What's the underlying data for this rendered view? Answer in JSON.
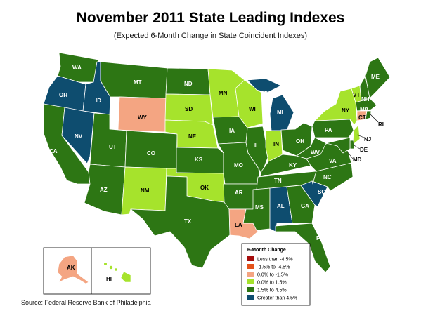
{
  "title": "November 2011 State Leading Indexes",
  "subtitle": "(Expected 6-Month Change in State Coincident Indexes)",
  "source": "Source: Federal Reserve Bank of Philadelphia",
  "legend": {
    "title": "6-Month Change",
    "classes": [
      {
        "label": "Less than -4.5%",
        "color": "#a50d0d"
      },
      {
        "label": "-1.5% to -4.5%",
        "color": "#e4521a"
      },
      {
        "label": "0.0% to -1.5%",
        "color": "#f4a582"
      },
      {
        "label": "0.0% to  1.5%",
        "color": "#a6e32c"
      },
      {
        "label": "1.5% to  4.5%",
        "color": "#2d7614"
      },
      {
        "label": "Greater than 4.5%",
        "color": "#0e4d6f"
      }
    ]
  },
  "states": [
    {
      "abbr": "WA",
      "class": 4
    },
    {
      "abbr": "OR",
      "class": 5
    },
    {
      "abbr": "CA",
      "class": 4
    },
    {
      "abbr": "ID",
      "class": 5
    },
    {
      "abbr": "NV",
      "class": 5
    },
    {
      "abbr": "MT",
      "class": 4
    },
    {
      "abbr": "WY",
      "class": 2
    },
    {
      "abbr": "UT",
      "class": 4
    },
    {
      "abbr": "CO",
      "class": 4
    },
    {
      "abbr": "AZ",
      "class": 4
    },
    {
      "abbr": "NM",
      "class": 3
    },
    {
      "abbr": "ND",
      "class": 4
    },
    {
      "abbr": "SD",
      "class": 3
    },
    {
      "abbr": "NE",
      "class": 3
    },
    {
      "abbr": "KS",
      "class": 4
    },
    {
      "abbr": "OK",
      "class": 3
    },
    {
      "abbr": "TX",
      "class": 4
    },
    {
      "abbr": "MN",
      "class": 3
    },
    {
      "abbr": "IA",
      "class": 4
    },
    {
      "abbr": "MO",
      "class": 4
    },
    {
      "abbr": "AR",
      "class": 4
    },
    {
      "abbr": "LA",
      "class": 2
    },
    {
      "abbr": "WI",
      "class": 3
    },
    {
      "abbr": "IL",
      "class": 4
    },
    {
      "abbr": "MI",
      "class": 5
    },
    {
      "abbr": "IN",
      "class": 3
    },
    {
      "abbr": "OH",
      "class": 4
    },
    {
      "abbr": "KY",
      "class": 4
    },
    {
      "abbr": "TN",
      "class": 4
    },
    {
      "abbr": "MS",
      "class": 4
    },
    {
      "abbr": "AL",
      "class": 5
    },
    {
      "abbr": "GA",
      "class": 4
    },
    {
      "abbr": "FL",
      "class": 4
    },
    {
      "abbr": "SC",
      "class": 5
    },
    {
      "abbr": "NC",
      "class": 4
    },
    {
      "abbr": "VA",
      "class": 4
    },
    {
      "abbr": "WV",
      "class": 4
    },
    {
      "abbr": "PA",
      "class": 4
    },
    {
      "abbr": "NY",
      "class": 3
    },
    {
      "abbr": "VT",
      "class": 3
    },
    {
      "abbr": "NH",
      "class": 4
    },
    {
      "abbr": "ME",
      "class": 4
    },
    {
      "abbr": "MA",
      "class": 4
    },
    {
      "abbr": "RI",
      "class": 4
    },
    {
      "abbr": "CT",
      "class": 2
    },
    {
      "abbr": "NJ",
      "class": 3
    },
    {
      "abbr": "DE",
      "class": 4
    },
    {
      "abbr": "MD",
      "class": 4
    },
    {
      "abbr": "AK",
      "class": 2
    },
    {
      "abbr": "HI",
      "class": 3
    }
  ]
}
